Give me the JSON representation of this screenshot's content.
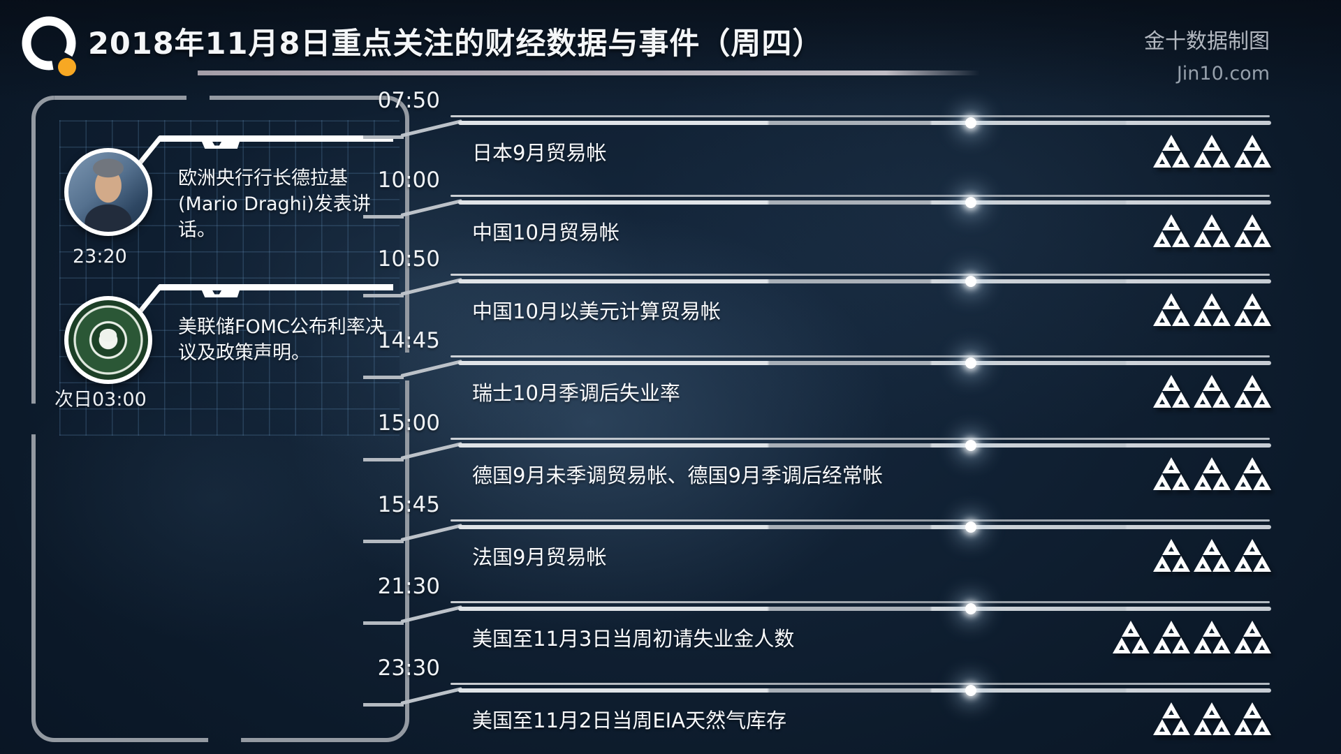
{
  "header": {
    "title": "2018年11月8日重点关注的财经数据与事件（周四）",
    "credit_line1": "金十数据制图",
    "credit_line2": "Jin10.com"
  },
  "left_panel": {
    "events": [
      {
        "avatar": "mario-draghi-photo",
        "text_line1": "欧洲央行行长德拉基",
        "text_line2": "(Mario Draghi)发表讲话。",
        "time": "23:20"
      },
      {
        "avatar": "federal-reserve-seal",
        "text_line1": "美联储FOMC公布利率决",
        "text_line2": "议及政策声明。",
        "time": "次日03:00"
      }
    ]
  },
  "timeline": {
    "rows": [
      {
        "time": "07:50",
        "event": "日本9月贸易帐",
        "importance": 3
      },
      {
        "time": "10:00",
        "event": "中国10月贸易帐",
        "importance": 3
      },
      {
        "time": "10:50",
        "event": "中国10月以美元计算贸易帐",
        "importance": 3
      },
      {
        "time": "14:45",
        "event": "瑞士10月季调后失业率",
        "importance": 3
      },
      {
        "time": "15:00",
        "event": "德国9月未季调贸易帐、德国9月季调后经常帐",
        "importance": 3
      },
      {
        "time": "15:45",
        "event": "法国9月贸易帐",
        "importance": 3
      },
      {
        "time": "21:30",
        "event": "美国至11月3日当周初请失业金人数",
        "importance": 4
      },
      {
        "time": "23:30",
        "event": "美国至11月2日当周EIA天然气库存",
        "importance": 3
      }
    ]
  },
  "colors": {
    "accent_orange": "#f7a823",
    "line_gray": "#c9ced6",
    "background_navy": "#0c1a2a",
    "triangle_white": "#ffffff"
  }
}
